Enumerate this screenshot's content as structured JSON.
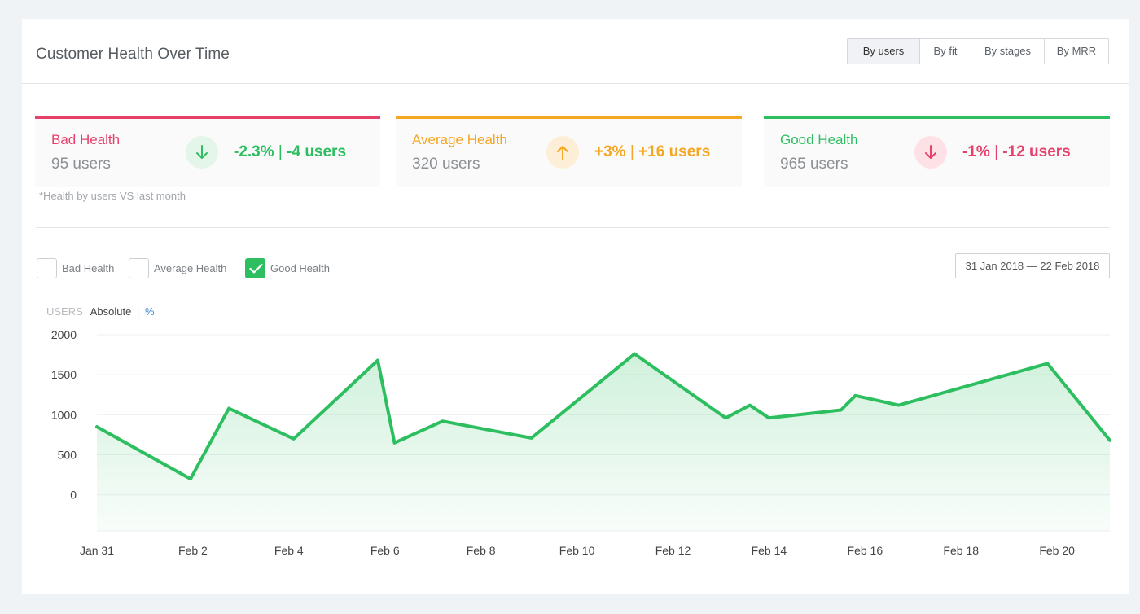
{
  "header": {
    "title": "Customer Health Over Time",
    "tabs": [
      {
        "label": "By users",
        "active": true
      },
      {
        "label": "By fit",
        "active": false
      },
      {
        "label": "By stages",
        "active": false
      },
      {
        "label": "By MRR",
        "active": false
      }
    ]
  },
  "stats": [
    {
      "name": "Bad Health",
      "count": "95 users",
      "change_pct": "-2.3%",
      "change_sep": "|",
      "change_users": "-4 users",
      "direction": "down",
      "accent": "#e5416b",
      "change_color": "#2dbe60",
      "circle_bg": "#e3f6e9",
      "icon": "arrow-down-icon"
    },
    {
      "name": "Average Health",
      "count": "320 users",
      "change_pct": "+3%",
      "change_sep": "|",
      "change_users": "+16 users",
      "direction": "up",
      "accent": "#f5a623",
      "change_color": "#f5a623",
      "circle_bg": "#fdefd7",
      "icon": "arrow-up-icon"
    },
    {
      "name": "Good Health",
      "count": "965 users",
      "change_pct": "-1%",
      "change_sep": "|",
      "change_users": "-12 users",
      "direction": "down",
      "accent": "#2dbe60",
      "change_color": "#e5416b",
      "circle_bg": "#fde1e7",
      "icon": "arrow-down-icon"
    }
  ],
  "footnote": "*Health by users VS last month",
  "legend": [
    {
      "label": "Bad Health",
      "checked": false
    },
    {
      "label": "Average Health",
      "checked": false
    },
    {
      "label": "Good Health",
      "checked": true
    }
  ],
  "date_range": "31 Jan 2018 — 22  Feb 2018",
  "units": {
    "label": "USERS",
    "absolute": "Absolute",
    "sep": "|",
    "percent": "%"
  },
  "colors": {
    "line": "#2dbe60",
    "fill": "#d9f3e1"
  },
  "chart_data": {
    "type": "area",
    "title": "",
    "xlabel": "",
    "ylabel": "",
    "ylim": [
      -450,
      2000
    ],
    "yticks": [
      2000,
      1500,
      1000,
      500,
      0
    ],
    "ytick_labels": [
      "2000",
      "1500",
      "1000",
      "500",
      "0"
    ],
    "xticks": [
      0,
      2,
      4,
      6,
      8,
      10,
      12,
      14,
      16,
      18,
      20
    ],
    "xtick_labels": [
      "Jan 31",
      "Feb 2",
      "Feb 4",
      "Feb 6",
      "Feb 8",
      "Feb 10",
      "Feb 12",
      "Feb 14",
      "Feb 16",
      "Feb 18",
      "Feb 20"
    ],
    "xlim": [
      0,
      21.1
    ],
    "grid": true,
    "series": [
      {
        "name": "Good Health",
        "x": [
          0,
          1.95,
          2.75,
          4.1,
          5.85,
          6.2,
          7.2,
          9.05,
          11.2,
          13.1,
          13.6,
          14.0,
          15.5,
          15.8,
          16.7,
          19.8,
          21.1
        ],
        "y": [
          850,
          200,
          1080,
          700,
          1680,
          650,
          920,
          710,
          1760,
          960,
          1120,
          960,
          1060,
          1240,
          1120,
          1640,
          680
        ]
      }
    ]
  }
}
